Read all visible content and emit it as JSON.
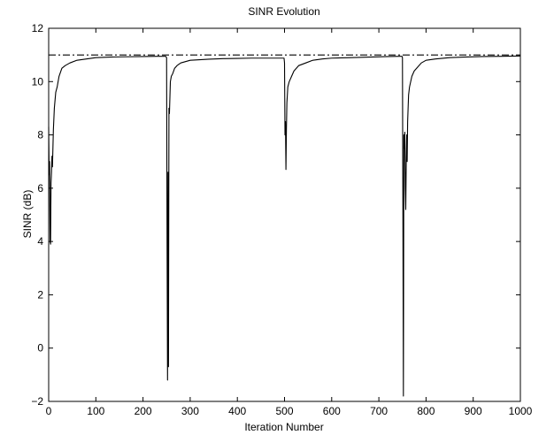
{
  "chart_data": {
    "type": "line",
    "title": "SINR Evolution",
    "xlabel": "Iteration Number",
    "ylabel": "SINR (dB)",
    "xlim": [
      0,
      1000
    ],
    "ylim": [
      -2,
      12
    ],
    "xticks": [
      0,
      100,
      200,
      300,
      400,
      500,
      600,
      700,
      800,
      900,
      1000
    ],
    "yticks": [
      -2,
      0,
      2,
      4,
      6,
      8,
      10,
      12
    ],
    "grid": false,
    "legend": "none",
    "series": [
      {
        "style": "dash-dot",
        "color": "#000000",
        "x": [
          0,
          1000
        ],
        "y": [
          11.0,
          11.0
        ]
      },
      {
        "style": "solid",
        "color": "#000000",
        "x": [
          0,
          1,
          2,
          3,
          4,
          5,
          6,
          7,
          8,
          10,
          12,
          15,
          18,
          22,
          28,
          35,
          45,
          60,
          80,
          100,
          130,
          160,
          200,
          230,
          248,
          250,
          251,
          252,
          253,
          254,
          255,
          256,
          258,
          260,
          263,
          267,
          272,
          280,
          290,
          300,
          320,
          340,
          370,
          400,
          430,
          460,
          490,
          499,
          500,
          501,
          502,
          503,
          504,
          505,
          507,
          510,
          515,
          520,
          530,
          545,
          560,
          580,
          600,
          640,
          680,
          720,
          745,
          749,
          750,
          751,
          752,
          753,
          754,
          755,
          756,
          757,
          758,
          759,
          760,
          761,
          763,
          765,
          770,
          775,
          780,
          790,
          800,
          820,
          850,
          880,
          920,
          960,
          1000
        ],
        "y": [
          8.3,
          6.5,
          7.0,
          4.0,
          3.9,
          6.2,
          6.6,
          7.2,
          6.8,
          8.2,
          9.0,
          9.6,
          9.8,
          10.2,
          10.5,
          10.6,
          10.7,
          10.8,
          10.85,
          10.9,
          10.92,
          10.93,
          10.94,
          10.95,
          10.95,
          10.9,
          4.0,
          -1.2,
          6.6,
          -0.7,
          9.0,
          8.8,
          10.0,
          10.2,
          10.3,
          10.5,
          10.6,
          10.7,
          10.75,
          10.8,
          10.82,
          10.84,
          10.86,
          10.87,
          10.88,
          10.88,
          10.88,
          10.88,
          10.7,
          8.0,
          8.5,
          6.7,
          8.2,
          9.2,
          9.8,
          10.0,
          10.2,
          10.4,
          10.6,
          10.7,
          10.8,
          10.85,
          10.88,
          10.9,
          10.92,
          10.94,
          10.95,
          10.95,
          10.9,
          5.0,
          -1.8,
          8.0,
          7.5,
          8.1,
          6.0,
          5.2,
          6.9,
          8.0,
          7.0,
          8.5,
          9.5,
          9.8,
          10.2,
          10.4,
          10.5,
          10.7,
          10.8,
          10.85,
          10.9,
          10.92,
          10.94,
          10.95,
          10.96
        ]
      }
    ]
  }
}
